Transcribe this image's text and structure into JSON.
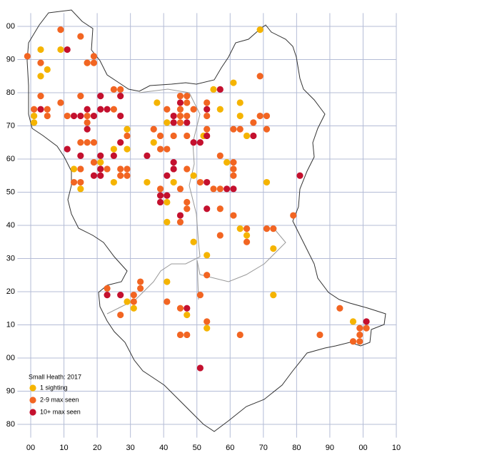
{
  "chart_data": {
    "type": "scatter",
    "title": "Small Heath:  2017",
    "legend": "bottom-left",
    "grid": true,
    "xlim": [
      -4,
      110
    ],
    "ylim": [
      -24,
      104
    ],
    "xticks": [
      {
        "value": 0,
        "label": "00"
      },
      10,
      20,
      30,
      40,
      50,
      60,
      70,
      80,
      90,
      {
        "value": 100,
        "label": "00"
      },
      {
        "value": 110,
        "label": "10"
      }
    ],
    "yticks": [
      {
        "value": -20,
        "label": "80"
      },
      {
        "value": -10,
        "label": "90"
      },
      {
        "value": 0,
        "label": "00"
      },
      10,
      20,
      30,
      40,
      50,
      60,
      70,
      80,
      90,
      {
        "value": 100,
        "label": "00"
      }
    ],
    "series": [
      {
        "name": "1 sighting",
        "color": "#f5b400",
        "x": [
          69,
          3,
          9,
          5,
          3,
          1,
          1,
          17,
          38,
          61,
          55,
          57,
          63,
          63,
          65,
          52,
          29,
          29,
          25,
          25,
          37,
          41,
          41,
          41,
          35,
          43,
          49,
          59,
          71,
          13,
          21,
          21,
          15,
          63,
          65,
          49,
          53,
          73,
          73,
          41,
          29,
          31,
          47,
          53,
          97
        ],
        "values": [
          99,
          93,
          93,
          87,
          85,
          73,
          71,
          89,
          77,
          83,
          81,
          75,
          77,
          73,
          67,
          67,
          69,
          63,
          63,
          53,
          65,
          71,
          47,
          41,
          53,
          53,
          55,
          59,
          53,
          57,
          57,
          59,
          51,
          39,
          37,
          35,
          31,
          33,
          19,
          23,
          17,
          15,
          13,
          9,
          11
        ]
      },
      {
        "name": "2-9 max seen",
        "color": "#f26522",
        "x": [
          9,
          15,
          -1,
          3,
          19,
          17,
          19,
          3,
          9,
          15,
          1,
          5,
          5,
          11,
          17,
          25,
          27,
          25,
          17,
          15,
          17,
          19,
          29,
          19,
          15,
          13,
          15,
          23,
          27,
          29,
          27,
          29,
          39,
          37,
          39,
          41,
          43,
          41,
          45,
          47,
          47,
          45,
          49,
          45,
          47,
          45,
          47,
          47,
          45,
          47,
          47,
          45,
          39,
          53,
          53,
          53,
          57,
          61,
          61,
          61,
          57,
          55,
          51,
          61,
          57,
          57,
          65,
          65,
          71,
          73,
          79,
          69,
          69,
          71,
          67,
          61,
          63,
          71,
          23,
          33,
          33,
          31,
          31,
          27,
          41,
          45,
          45,
          47,
          51,
          53,
          53,
          63,
          87,
          93,
          99,
          101,
          99,
          97,
          99
        ],
        "values": [
          99,
          97,
          91,
          89,
          91,
          89,
          89,
          79,
          77,
          79,
          75,
          75,
          73,
          73,
          73,
          81,
          81,
          75,
          71,
          65,
          65,
          65,
          67,
          59,
          57,
          53,
          53,
          57,
          57,
          57,
          55,
          55,
          67,
          69,
          63,
          63,
          67,
          75,
          79,
          79,
          77,
          75,
          75,
          73,
          73,
          71,
          67,
          57,
          51,
          47,
          45,
          41,
          51,
          77,
          73,
          69,
          61,
          59,
          57,
          55,
          51,
          51,
          53,
          43,
          45,
          37,
          39,
          35,
          39,
          39,
          43,
          85,
          73,
          73,
          71,
          69,
          69,
          69,
          21,
          23,
          21,
          19,
          17,
          13,
          17,
          15,
          7,
          7,
          19,
          25,
          11,
          7,
          7,
          15,
          9,
          9,
          7,
          5,
          5
        ]
      },
      {
        "name": "10+ max seen",
        "color": "#c4102e",
        "x": [
          11,
          3,
          13,
          15,
          17,
          19,
          21,
          21,
          23,
          27,
          27,
          17,
          11,
          15,
          21,
          25,
          27,
          21,
          19,
          21,
          35,
          43,
          45,
          43,
          47,
          53,
          57,
          49,
          51,
          53,
          67,
          43,
          43,
          41,
          39,
          41,
          39,
          45,
          53,
          59,
          61,
          53,
          81,
          23,
          27,
          47,
          51,
          101
        ],
        "values": [
          93,
          75,
          73,
          73,
          75,
          73,
          79,
          75,
          75,
          79,
          73,
          69,
          63,
          61,
          61,
          61,
          65,
          57,
          55,
          55,
          61,
          73,
          77,
          71,
          71,
          75,
          81,
          65,
          65,
          67,
          67,
          59,
          57,
          55,
          49,
          49,
          47,
          43,
          53,
          51,
          51,
          45,
          55,
          19,
          19,
          15,
          -3,
          11
        ]
      }
    ]
  }
}
